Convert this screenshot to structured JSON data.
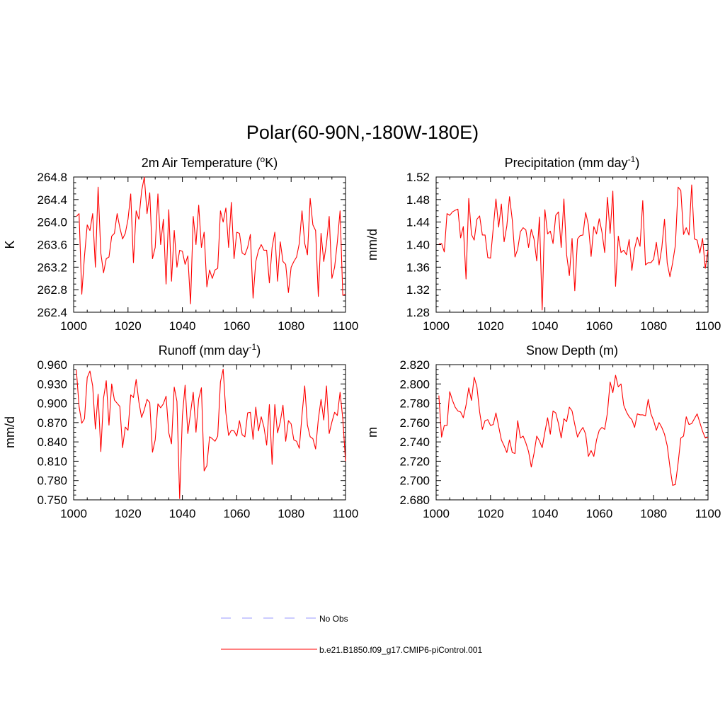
{
  "title": "Polar(60-90N,-180W-180E)",
  "colors": {
    "model": "#ff0000",
    "obs": "#9999ff",
    "axis": "#000000"
  },
  "legend": {
    "obs_label": "No Obs",
    "model_label": "b.e21.B1850.f09_g17.CMIP6-piControl.001"
  },
  "panels": [
    {
      "title_main": "2m Air Temperature (",
      "title_sup": "o",
      "title_tail": "K)",
      "ylabel": "K",
      "xticks": [
        "1000",
        "1020",
        "1040",
        "1060",
        "1080",
        "1100"
      ],
      "yticks": [
        "262.4",
        "262.8",
        "263.2",
        "263.6",
        "264.0",
        "264.4",
        "264.8"
      ]
    },
    {
      "title_main": "Precipitation (mm day",
      "title_sup": "-1",
      "title_tail": ")",
      "ylabel": "mm/d",
      "xticks": [
        "1000",
        "1020",
        "1040",
        "1060",
        "1080",
        "1100"
      ],
      "yticks": [
        "1.28",
        "1.32",
        "1.36",
        "1.40",
        "1.44",
        "1.48",
        "1.52"
      ]
    },
    {
      "title_main": "Runoff (mm day",
      "title_sup": "-1",
      "title_tail": ")",
      "ylabel": "mm/d",
      "xticks": [
        "1000",
        "1020",
        "1040",
        "1060",
        "1080",
        "1100"
      ],
      "yticks": [
        "0.750",
        "0.780",
        "0.810",
        "0.840",
        "0.870",
        "0.900",
        "0.930",
        "0.960"
      ]
    },
    {
      "title_main": "Snow Depth (m)",
      "title_sup": "",
      "title_tail": "",
      "ylabel": "m",
      "xticks": [
        "1000",
        "1020",
        "1040",
        "1060",
        "1080",
        "1100"
      ],
      "yticks": [
        "2.680",
        "2.700",
        "2.720",
        "2.740",
        "2.760",
        "2.780",
        "2.800",
        "2.820"
      ]
    }
  ],
  "chart_data": [
    {
      "type": "line",
      "title": "2m Air Temperature (oK)",
      "xlabel": "",
      "ylabel": "K",
      "xlim": [
        1000,
        1100
      ],
      "ylim": [
        262.4,
        264.8
      ],
      "x_start": 1001,
      "series": [
        {
          "name": "b.e21.B1850.f09_g17.CMIP6-piControl.001",
          "values": [
            264.1,
            264.15,
            262.72,
            263.4,
            263.95,
            263.85,
            264.15,
            263.2,
            264.62,
            263.45,
            263.1,
            263.35,
            263.38,
            263.75,
            263.8,
            264.15,
            263.9,
            263.7,
            263.8,
            264.05,
            264.5,
            263.28,
            264.2,
            264.05,
            264.55,
            264.8,
            264.15,
            264.52,
            263.35,
            263.55,
            264.5,
            263.6,
            264.05,
            262.9,
            264.22,
            262.95,
            263.85,
            263.2,
            263.5,
            263.48,
            263.25,
            263.4,
            262.55,
            264.1,
            263.6,
            264.3,
            263.55,
            263.82,
            262.85,
            263.15,
            263.0,
            263.15,
            263.18,
            264.2,
            264.0,
            264.25,
            263.55,
            264.35,
            263.35,
            263.82,
            263.8,
            263.45,
            263.42,
            263.55,
            263.78,
            262.65,
            263.3,
            263.5,
            263.6,
            263.5,
            263.5,
            262.92,
            263.55,
            263.82,
            262.95,
            263.65,
            263.3,
            263.25,
            262.75,
            263.2,
            263.3,
            263.38,
            263.62,
            264.2,
            263.62,
            263.42,
            264.42,
            263.95,
            263.85,
            262.68,
            263.8,
            263.3,
            263.62,
            264.1,
            263.0,
            263.2,
            263.65,
            264.2,
            262.7,
            262.72
          ]
        }
      ]
    },
    {
      "type": "line",
      "title": "Precipitation (mm day-1)",
      "xlabel": "",
      "ylabel": "mm/d",
      "xlim": [
        1000,
        1100
      ],
      "ylim": [
        1.28,
        1.52
      ],
      "x_start": 1001,
      "series": [
        {
          "name": "b.e21.B1850.f09_g17.CMIP6-piControl.001",
          "values": [
            1.401,
            1.402,
            1.387,
            1.455,
            1.452,
            1.458,
            1.461,
            1.463,
            1.412,
            1.432,
            1.339,
            1.482,
            1.418,
            1.408,
            1.445,
            1.451,
            1.417,
            1.417,
            1.377,
            1.376,
            1.429,
            1.481,
            1.431,
            1.472,
            1.405,
            1.433,
            1.485,
            1.444,
            1.378,
            1.392,
            1.423,
            1.43,
            1.426,
            1.395,
            1.427,
            1.41,
            1.371,
            1.449,
            1.284,
            1.462,
            1.419,
            1.424,
            1.402,
            1.452,
            1.458,
            1.395,
            1.481,
            1.382,
            1.345,
            1.411,
            1.318,
            1.41,
            1.416,
            1.417,
            1.457,
            1.435,
            1.379,
            1.432,
            1.419,
            1.446,
            1.422,
            1.386,
            1.484,
            1.42,
            1.495,
            1.326,
            1.415,
            1.386,
            1.39,
            1.382,
            1.409,
            1.354,
            1.393,
            1.413,
            1.397,
            1.478,
            1.364,
            1.368,
            1.368,
            1.374,
            1.404,
            1.364,
            1.394,
            1.445,
            1.367,
            1.343,
            1.368,
            1.399,
            1.502,
            1.496,
            1.418,
            1.43,
            1.417,
            1.506,
            1.41,
            1.408,
            1.385,
            1.411,
            1.358,
            1.39
          ]
        }
      ]
    },
    {
      "type": "line",
      "title": "Runoff (mm day-1)",
      "xlabel": "",
      "ylabel": "mm/d",
      "xlim": [
        1000,
        1100
      ],
      "ylim": [
        0.75,
        0.96
      ],
      "x_start": 1001,
      "series": [
        {
          "name": "b.e21.B1850.f09_g17.CMIP6-piControl.001",
          "values": [
            0.952,
            0.895,
            0.869,
            0.876,
            0.94,
            0.95,
            0.927,
            0.86,
            0.914,
            0.825,
            0.908,
            0.935,
            0.866,
            0.93,
            0.905,
            0.9,
            0.895,
            0.831,
            0.863,
            0.858,
            0.913,
            0.909,
            0.937,
            0.902,
            0.878,
            0.89,
            0.906,
            0.901,
            0.824,
            0.843,
            0.899,
            0.893,
            0.899,
            0.911,
            0.854,
            0.837,
            0.925,
            0.903,
            0.752,
            0.88,
            0.928,
            0.853,
            0.885,
            0.917,
            0.855,
            0.907,
            0.924,
            0.795,
            0.803,
            0.848,
            0.845,
            0.841,
            0.849,
            0.933,
            0.953,
            0.885,
            0.85,
            0.858,
            0.857,
            0.849,
            0.873,
            0.851,
            0.848,
            0.885,
            0.886,
            0.844,
            0.894,
            0.857,
            0.879,
            0.863,
            0.835,
            0.898,
            0.805,
            0.898,
            0.854,
            0.871,
            0.897,
            0.841,
            0.873,
            0.868,
            0.843,
            0.841,
            0.83,
            0.882,
            0.927,
            0.866,
            0.848,
            0.845,
            0.829,
            0.875,
            0.906,
            0.874,
            0.927,
            0.853,
            0.871,
            0.886,
            0.881,
            0.917,
            0.876,
            0.81
          ]
        }
      ]
    },
    {
      "type": "line",
      "title": "Snow Depth (m)",
      "xlabel": "",
      "ylabel": "m",
      "xlim": [
        1000,
        1100
      ],
      "ylim": [
        2.68,
        2.82
      ],
      "x_start": 1001,
      "series": [
        {
          "name": "b.e21.B1850.f09_g17.CMIP6-piControl.001",
          "values": [
            2.788,
            2.745,
            2.757,
            2.757,
            2.792,
            2.783,
            2.776,
            2.772,
            2.771,
            2.765,
            2.778,
            2.796,
            2.783,
            2.807,
            2.797,
            2.771,
            2.753,
            2.762,
            2.763,
            2.757,
            2.758,
            2.77,
            2.756,
            2.742,
            2.736,
            2.729,
            2.742,
            2.729,
            2.728,
            2.762,
            2.744,
            2.746,
            2.739,
            2.73,
            2.714,
            2.728,
            2.746,
            2.741,
            2.734,
            2.75,
            2.765,
            2.748,
            2.772,
            2.77,
            2.759,
            2.744,
            2.764,
            2.761,
            2.776,
            2.772,
            2.758,
            2.745,
            2.751,
            2.755,
            2.748,
            2.725,
            2.731,
            2.725,
            2.742,
            2.752,
            2.755,
            2.753,
            2.77,
            2.802,
            2.791,
            2.809,
            2.797,
            2.8,
            2.778,
            2.771,
            2.766,
            2.763,
            2.755,
            2.769,
            2.768,
            2.768,
            2.767,
            2.784,
            2.769,
            2.762,
            2.752,
            2.76,
            2.755,
            2.748,
            2.736,
            2.714,
            2.695,
            2.696,
            2.718,
            2.744,
            2.746,
            2.766,
            2.758,
            2.759,
            2.764,
            2.769,
            2.76,
            2.751,
            2.744,
            2.745
          ]
        }
      ]
    }
  ]
}
